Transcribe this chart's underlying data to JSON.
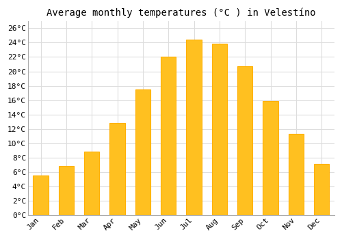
{
  "title": "Average monthly temperatures (°C ) in Velestíno",
  "months": [
    "Jan",
    "Feb",
    "Mar",
    "Apr",
    "May",
    "Jun",
    "Jul",
    "Aug",
    "Sep",
    "Oct",
    "Nov",
    "Dec"
  ],
  "values": [
    5.5,
    6.8,
    8.8,
    12.8,
    17.5,
    22.0,
    24.4,
    23.9,
    20.7,
    15.9,
    11.3,
    7.1
  ],
  "bar_color": "#FFC020",
  "bar_edge_color": "#FFB000",
  "ylim": [
    0,
    27
  ],
  "yticks": [
    0,
    2,
    4,
    6,
    8,
    10,
    12,
    14,
    16,
    18,
    20,
    22,
    24,
    26
  ],
  "ytick_labels": [
    "0°C",
    "2°C",
    "4°C",
    "6°C",
    "8°C",
    "10°C",
    "12°C",
    "14°C",
    "16°C",
    "18°C",
    "20°C",
    "22°C",
    "24°C",
    "26°C"
  ],
  "bg_color": "#ffffff",
  "grid_color": "#dddddd",
  "title_fontsize": 10,
  "tick_fontsize": 8,
  "font_family": "monospace",
  "bar_width": 0.6
}
